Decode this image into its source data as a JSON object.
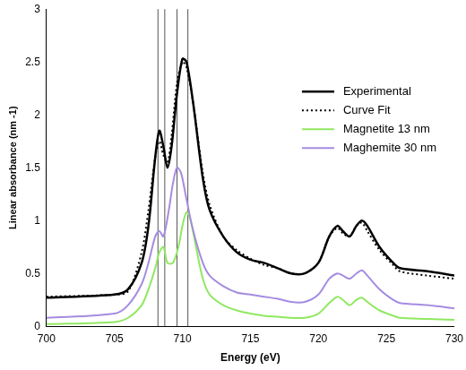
{
  "chart_data": {
    "type": "line",
    "x_label": "Energy (eV)",
    "y_label": "Linear absorbance (nm -1)",
    "xlim": [
      700,
      730
    ],
    "xticks": [
      700,
      705,
      710,
      715,
      720,
      725,
      730
    ],
    "ylim": [
      0,
      3
    ],
    "yticks": [
      0,
      0.5,
      1,
      1.5,
      2,
      2.5,
      3
    ],
    "grid": false,
    "legend": "upper right",
    "vlines": [
      708.2,
      708.7,
      709.6,
      710.4
    ],
    "series": [
      {
        "name": "Experimental",
        "color": "#000000",
        "line_style": "solid",
        "x": [
          700,
          705,
          706,
          707,
          707.5,
          708,
          708.3,
          708.6,
          708.9,
          709.2,
          709.6,
          710,
          710.3,
          710.8,
          711.5,
          712,
          713,
          714,
          715,
          716,
          717,
          718,
          719,
          720,
          720.8,
          721.4,
          721.8,
          722.3,
          722.8,
          723.2,
          723.6,
          724.5,
          725.5,
          726,
          728,
          730
        ],
        "values": [
          0.27,
          0.3,
          0.35,
          0.6,
          0.95,
          1.6,
          1.85,
          1.7,
          1.5,
          1.7,
          2.2,
          2.53,
          2.5,
          2.1,
          1.4,
          1.1,
          0.85,
          0.7,
          0.63,
          0.6,
          0.55,
          0.5,
          0.5,
          0.6,
          0.85,
          0.95,
          0.9,
          0.85,
          0.95,
          1.0,
          0.95,
          0.75,
          0.6,
          0.55,
          0.52,
          0.48
        ]
      },
      {
        "name": "Curve Fit",
        "color": "#000000",
        "line_style": "dotted",
        "x": [
          700,
          705,
          706,
          707,
          707.5,
          708,
          708.3,
          708.6,
          708.9,
          709.2,
          709.6,
          710,
          710.3,
          710.8,
          711.5,
          712,
          713,
          714,
          715,
          716,
          717,
          718,
          719,
          720,
          720.8,
          721.4,
          721.8,
          722.3,
          722.8,
          723.2,
          723.6,
          724.5,
          725.5,
          726,
          728,
          730
        ],
        "values": [
          0.28,
          0.3,
          0.33,
          0.7,
          1.1,
          1.6,
          1.75,
          1.62,
          1.55,
          1.8,
          2.3,
          2.5,
          2.45,
          2.1,
          1.45,
          1.15,
          0.85,
          0.72,
          0.64,
          0.58,
          0.55,
          0.5,
          0.5,
          0.6,
          0.85,
          0.93,
          0.88,
          0.85,
          0.95,
          0.98,
          0.9,
          0.72,
          0.58,
          0.52,
          0.48,
          0.45
        ]
      },
      {
        "name": "Magnetite 13 nm",
        "color": "#90e860",
        "line_style": "solid",
        "x": [
          700,
          705,
          706,
          707,
          707.5,
          708,
          708.3,
          708.6,
          708.9,
          709.3,
          709.7,
          710,
          710.3,
          710.6,
          711,
          711.5,
          712,
          713,
          714,
          715,
          716,
          717,
          718,
          719,
          720,
          720.8,
          721.4,
          721.8,
          722.3,
          722.8,
          723.2,
          723.6,
          724.5,
          725.5,
          726,
          728,
          730
        ],
        "values": [
          0.02,
          0.04,
          0.08,
          0.2,
          0.35,
          0.55,
          0.7,
          0.75,
          0.6,
          0.6,
          0.75,
          0.95,
          1.08,
          1.0,
          0.75,
          0.45,
          0.3,
          0.2,
          0.15,
          0.12,
          0.1,
          0.09,
          0.08,
          0.08,
          0.12,
          0.22,
          0.28,
          0.25,
          0.2,
          0.25,
          0.27,
          0.23,
          0.15,
          0.1,
          0.08,
          0.07,
          0.06
        ]
      },
      {
        "name": "Maghemite 30 nm",
        "color": "#a58ce0",
        "line_style": "solid",
        "x": [
          700,
          705,
          706,
          707,
          707.5,
          708,
          708.3,
          708.6,
          709,
          709.3,
          709.6,
          709.9,
          710.3,
          710.8,
          711.5,
          712,
          713,
          714,
          715,
          716,
          717,
          718,
          719,
          720,
          720.8,
          721.4,
          721.8,
          722.3,
          722.8,
          723.2,
          723.6,
          724.5,
          725.5,
          726,
          728,
          730
        ],
        "values": [
          0.08,
          0.12,
          0.2,
          0.4,
          0.6,
          0.85,
          0.9,
          0.85,
          1.1,
          1.35,
          1.5,
          1.45,
          1.2,
          0.9,
          0.6,
          0.48,
          0.38,
          0.32,
          0.3,
          0.28,
          0.26,
          0.23,
          0.23,
          0.3,
          0.45,
          0.5,
          0.48,
          0.45,
          0.5,
          0.53,
          0.48,
          0.35,
          0.25,
          0.22,
          0.2,
          0.17
        ]
      }
    ]
  }
}
